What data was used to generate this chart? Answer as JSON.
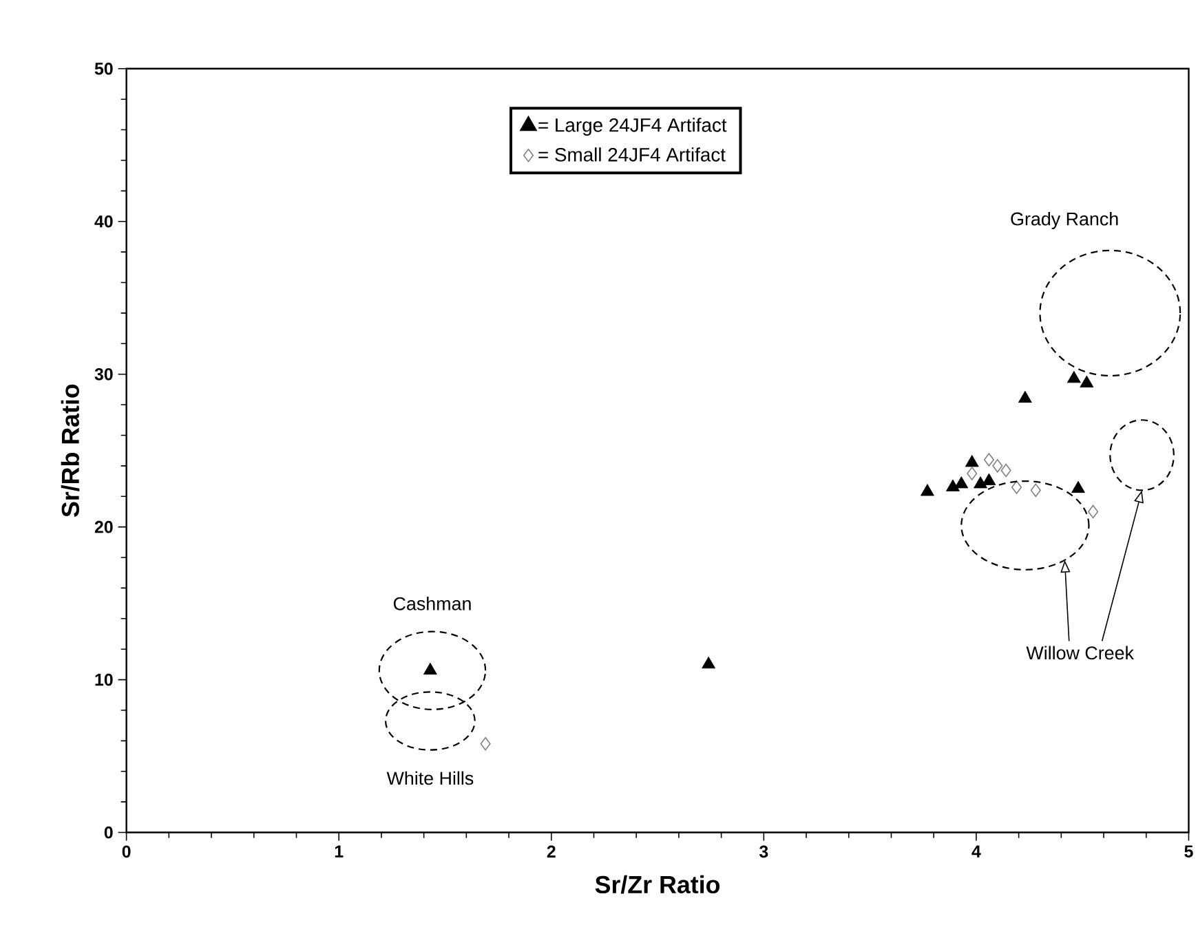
{
  "chart_data": {
    "type": "scatter",
    "xlabel": "Sr/Zr Ratio",
    "ylabel": "Sr/Rb Ratio",
    "xlim": [
      0,
      5
    ],
    "ylim": [
      0,
      50
    ],
    "xticks": [
      0,
      1,
      2,
      3,
      4,
      5
    ],
    "yticks": [
      0,
      10,
      20,
      30,
      40,
      50
    ],
    "legend": "top",
    "grid": false,
    "series": [
      {
        "name": "= Large 24JF4 Artifact",
        "color": "#000000",
        "marker": "triangle",
        "x": [
          1.43,
          2.74,
          4.46,
          4.52,
          4.23,
          3.77,
          3.89,
          3.93,
          3.98,
          4.02,
          4.06,
          4.48
        ],
        "values": [
          10.6,
          11.0,
          29.7,
          29.4,
          28.4,
          22.3,
          22.6,
          22.8,
          24.2,
          22.8,
          23.0,
          22.5
        ]
      },
      {
        "name": "= Small 24JF4 Artifact",
        "color": "#808080",
        "marker": "diamond",
        "x": [
          1.69,
          3.98,
          4.06,
          4.1,
          4.14,
          4.19,
          4.28,
          4.55
        ],
        "values": [
          5.8,
          23.5,
          24.4,
          24.0,
          23.7,
          22.6,
          22.4,
          21.0
        ]
      }
    ],
    "annotations": [
      "Grady Ranch",
      "Cashman",
      "White Hills",
      "Willow Creek"
    ]
  }
}
